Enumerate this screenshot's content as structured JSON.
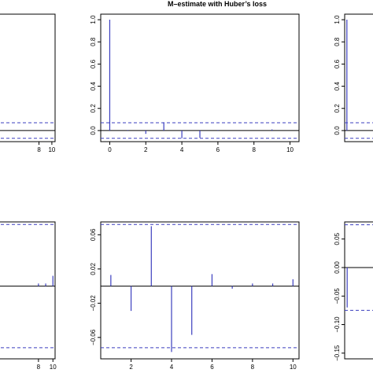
{
  "title": "M–estimate with Huber’s loss",
  "colors": {
    "bar": "#3b3fbf",
    "band": "#3b3fbf",
    "axis": "#000000",
    "baseline": "#000000"
  },
  "chart_data": [
    {
      "type": "bar",
      "panel": "top-left",
      "x": [
        8,
        9,
        10
      ],
      "values": [
        0.0,
        0.0,
        0.0
      ],
      "band": [
        -0.07,
        0.07
      ],
      "xticks": [
        8,
        10
      ],
      "yticks": []
    },
    {
      "type": "bar",
      "panel": "top-center",
      "title": "M–estimate with Huber’s loss",
      "x": [
        0,
        1,
        2,
        3,
        4,
        5,
        6,
        7,
        8,
        9,
        10
      ],
      "values": [
        1.0,
        0.005,
        -0.03,
        0.075,
        -0.07,
        -0.065,
        0.005,
        0.0,
        0.0,
        0.01,
        0.0
      ],
      "band": [
        -0.07,
        0.07
      ],
      "xlim": [
        -0.5,
        10.5
      ],
      "ylim": [
        -0.1,
        1.05
      ],
      "xticks": [
        0,
        2,
        4,
        6,
        8,
        10
      ],
      "yticks": [
        0.0,
        0.2,
        0.4,
        0.6,
        0.8,
        1.0
      ],
      "ytick_labels": [
        "0.0",
        "0.2",
        "0.4",
        "0.6",
        "0.8",
        "1.0"
      ]
    },
    {
      "type": "bar",
      "panel": "top-right",
      "x": [
        0,
        1
      ],
      "values": [
        1.0,
        0.0
      ],
      "band": [
        -0.07,
        0.07
      ],
      "ylim": [
        -0.1,
        1.05
      ],
      "yticks": [
        0.0,
        0.2,
        0.4,
        0.6,
        0.8,
        1.0
      ],
      "ytick_labels": [
        "0.0",
        "0.2",
        "0.4",
        "0.6",
        "0.8",
        "1.0"
      ]
    },
    {
      "type": "bar",
      "panel": "bottom-left",
      "x": [
        8,
        9,
        10
      ],
      "values": [
        0.003,
        0.003,
        0.012
      ],
      "band": [
        -0.072,
        0.072
      ],
      "xticks": [
        8,
        10
      ],
      "yticks": []
    },
    {
      "type": "bar",
      "panel": "bottom-center",
      "x": [
        1,
        2,
        3,
        4,
        5,
        6,
        7,
        8,
        9,
        10
      ],
      "values": [
        0.013,
        -0.029,
        0.07,
        -0.077,
        -0.057,
        0.014,
        -0.003,
        0.003,
        0.003,
        0.008
      ],
      "band": [
        -0.072,
        0.072
      ],
      "xlim": [
        0.5,
        10.3
      ],
      "ylim": [
        -0.085,
        0.075
      ],
      "xticks": [
        2,
        4,
        6,
        8,
        10
      ],
      "yticks": [
        -0.06,
        -0.02,
        0.02,
        0.06
      ],
      "ytick_labels": [
        "−0.06",
        "−0.02",
        "0.02",
        "0.06"
      ]
    },
    {
      "type": "bar",
      "panel": "bottom-right",
      "x": [
        1
      ],
      "values": [
        -0.07
      ],
      "band": [
        -0.075,
        0.075
      ],
      "ylim": [
        -0.16,
        0.08
      ],
      "yticks": [
        -0.15,
        -0.1,
        -0.05,
        0.0,
        0.05
      ],
      "ytick_labels": [
        "−0.15",
        "−0.10",
        "−0.05",
        "0.00",
        "0.05"
      ]
    }
  ]
}
